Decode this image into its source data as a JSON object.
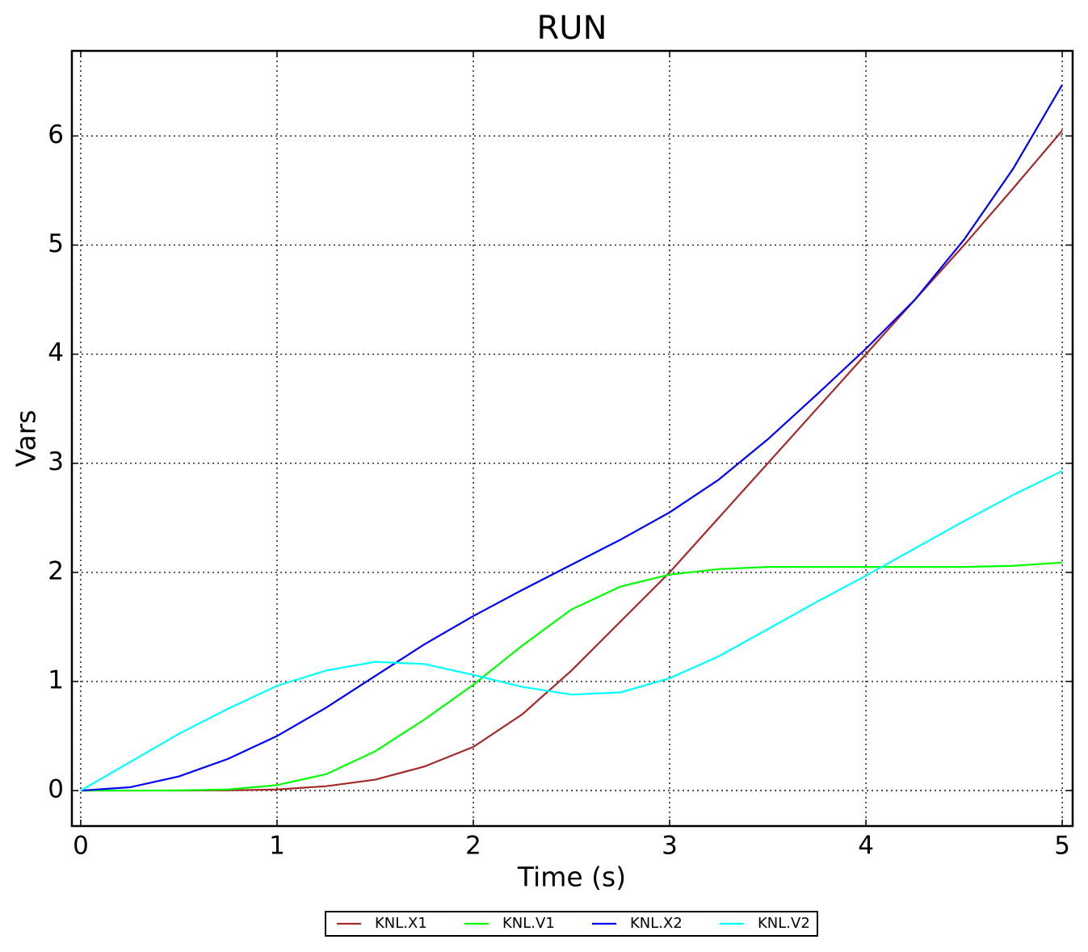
{
  "chart_data": {
    "type": "line",
    "title": "RUN",
    "x_label": "Time (s)",
    "y_label": "Vars",
    "x": [
      0,
      0.25,
      0.5,
      0.75,
      1,
      1.25,
      1.5,
      1.75,
      2,
      2.25,
      2.5,
      2.75,
      3,
      3.25,
      3.5,
      3.75,
      4,
      4.25,
      4.5,
      4.75,
      5
    ],
    "series": [
      {
        "name": "KNL.X1",
        "color": "#a52a2a",
        "values": [
          0,
          0,
          0,
          0.002,
          0.01,
          0.04,
          0.1,
          0.22,
          0.4,
          0.7,
          1.1,
          1.55,
          2.0,
          2.5,
          3.0,
          3.5,
          4.0,
          4.5,
          5.0,
          5.52,
          6.05
        ]
      },
      {
        "name": "KNL.V1",
        "color": "#00ff00",
        "values": [
          0,
          0,
          0.002,
          0.01,
          0.05,
          0.15,
          0.36,
          0.65,
          0.97,
          1.33,
          1.66,
          1.87,
          1.98,
          2.03,
          2.05,
          2.05,
          2.05,
          2.05,
          2.05,
          2.06,
          2.09
        ]
      },
      {
        "name": "KNL.X2",
        "color": "#0000ff",
        "values": [
          0,
          0.03,
          0.13,
          0.29,
          0.5,
          0.76,
          1.05,
          1.34,
          1.6,
          1.84,
          2.07,
          2.3,
          2.55,
          2.85,
          3.22,
          3.63,
          4.05,
          4.5,
          5.05,
          5.7,
          6.47
        ]
      },
      {
        "name": "KNL.V2",
        "color": "#00ffff",
        "values": [
          0,
          0.26,
          0.52,
          0.75,
          0.96,
          1.1,
          1.18,
          1.16,
          1.06,
          0.95,
          0.88,
          0.9,
          1.03,
          1.23,
          1.48,
          1.73,
          1.97,
          2.22,
          2.47,
          2.71,
          2.93
        ]
      }
    ],
    "xlim": [
      -0.045,
      5.053
    ],
    "ylim": [
      -0.325,
      6.78
    ],
    "xticks": [
      0,
      1,
      2,
      3,
      4,
      5
    ],
    "yticks": [
      0,
      1,
      2,
      3,
      4,
      5,
      6
    ],
    "grid": true,
    "legend": "bottom"
  }
}
